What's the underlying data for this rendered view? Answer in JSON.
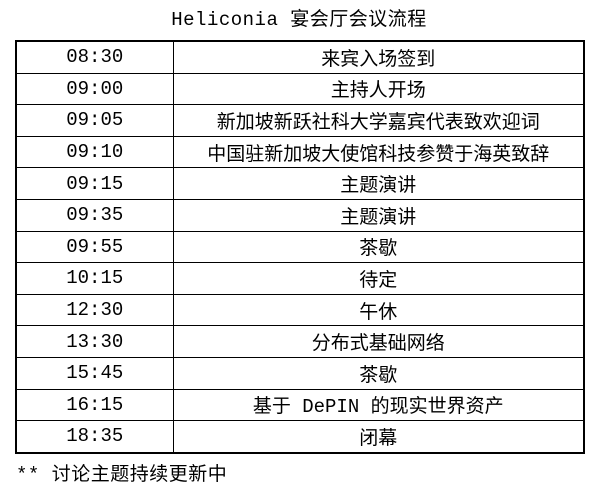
{
  "title": "Heliconia 宴会厅会议流程",
  "schedule": {
    "rows": [
      {
        "time": "08:30",
        "event": "来宾入场签到"
      },
      {
        "time": "09:00",
        "event": "主持人开场"
      },
      {
        "time": "09:05",
        "event": "新加坡新跃社科大学嘉宾代表致欢迎词"
      },
      {
        "time": "09:10",
        "event": "中国驻新加坡大使馆科技参赞于海英致辞"
      },
      {
        "time": "09:15",
        "event": "主题演讲"
      },
      {
        "time": "09:35",
        "event": "主题演讲"
      },
      {
        "time": "09:55",
        "event": "茶歇"
      },
      {
        "time": "10:15",
        "event": "待定"
      },
      {
        "time": "12:30",
        "event": "午休"
      },
      {
        "time": "13:30",
        "event": "分布式基础网络"
      },
      {
        "time": "15:45",
        "event": "茶歇"
      },
      {
        "time": "16:15",
        "event": "基于 DePIN 的现实世界资产"
      },
      {
        "time": "18:35",
        "event": "闭幕"
      }
    ]
  },
  "footnote": "** 讨论主题持续更新中",
  "colors": {
    "text": "#000000",
    "border": "#000000",
    "background": "#ffffff"
  }
}
